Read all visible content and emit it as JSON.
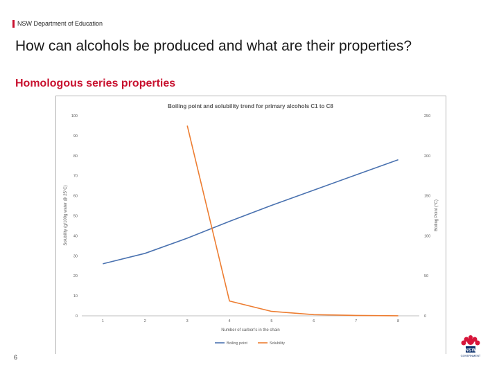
{
  "header": {
    "department": "NSW Department of Education",
    "title": "How can alcohols be produced and what are their properties?",
    "subtitle": "Homologous series properties"
  },
  "footer": {
    "page_number": "6",
    "logo_text": "NSW GOVERNMENT"
  },
  "colors": {
    "accent": "#c8102e",
    "boiling": "#4a72b0",
    "solubility": "#ed7d31"
  },
  "chart_data": {
    "type": "line",
    "title": "Boiling point and solubility trend for primary alcohols C1 to C8",
    "xlabel": "Number of carbon's in the chain",
    "ylabel_left": "Solubility (g/100g water @ 25°C)",
    "ylabel_right": "Boiling Point (°C)",
    "x": [
      1,
      2,
      3,
      4,
      5,
      6,
      7,
      8
    ],
    "left_ticks": [
      "0",
      "10",
      "20",
      "30",
      "40",
      "50",
      "60",
      "70",
      "80",
      "90",
      "100"
    ],
    "right_ticks": [
      "0",
      "50",
      "100",
      "150",
      "200",
      "250"
    ],
    "ylim_left": [
      0,
      100
    ],
    "ylim_right": [
      0,
      250
    ],
    "grid": false,
    "legend_position": "bottom",
    "series": [
      {
        "name": "Boiling point",
        "axis": "right",
        "x": [
          1,
          2,
          3,
          4,
          5,
          6,
          7,
          8
        ],
        "values": [
          65,
          78,
          97,
          118,
          138,
          157,
          176,
          195
        ]
      },
      {
        "name": "Solubility",
        "axis": "left",
        "x": [
          3,
          4,
          5,
          6,
          7,
          8
        ],
        "values": [
          95,
          7.4,
          2.2,
          0.6,
          0.2,
          0.05
        ]
      }
    ]
  }
}
